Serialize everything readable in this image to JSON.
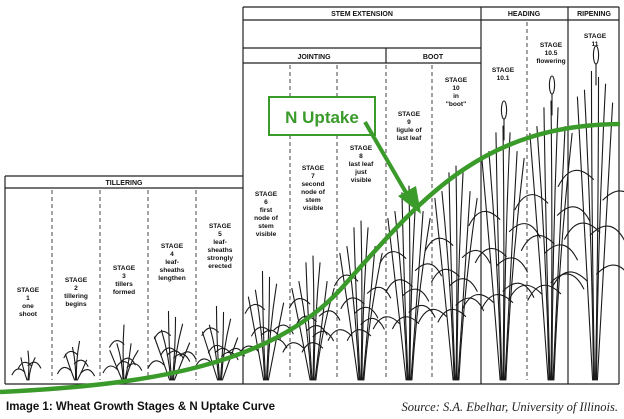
{
  "headers": {
    "tillering": "TILLERING",
    "stem_extension": "STEM EXTENSION",
    "jointing": "JOINTING",
    "boot": "BOOT",
    "heading": "HEADING",
    "ripening": "RIPENING"
  },
  "stages": [
    {
      "lines": [
        "STAGE",
        "1",
        "one",
        "shoot"
      ]
    },
    {
      "lines": [
        "STAGE",
        "2",
        "tillering",
        "begins"
      ]
    },
    {
      "lines": [
        "STAGE",
        "3",
        "tillers",
        "formed"
      ]
    },
    {
      "lines": [
        "STAGE",
        "4",
        "leaf-",
        "sheaths",
        "lengthen"
      ]
    },
    {
      "lines": [
        "STAGE",
        "5",
        "leaf-",
        "sheaths",
        "strongly",
        "erected"
      ]
    },
    {
      "lines": [
        "STAGE",
        "6",
        "first",
        "node of",
        "stem",
        "visible"
      ]
    },
    {
      "lines": [
        "STAGE",
        "7",
        "second",
        "node of",
        "stem",
        "visible"
      ]
    },
    {
      "lines": [
        "STAGE",
        "8",
        "last leaf",
        "just",
        "visible"
      ]
    },
    {
      "lines": [
        "STAGE",
        "9",
        "ligule of",
        "last leaf"
      ]
    },
    {
      "lines": [
        "STAGE",
        "10",
        "in",
        "\"boot\""
      ]
    },
    {
      "lines": [
        "STAGE",
        "10.1"
      ]
    },
    {
      "lines": [
        "STAGE",
        "10.5",
        "flowering"
      ]
    },
    {
      "lines": [
        "STAGE",
        "11"
      ]
    }
  ],
  "uptake_label": "N Uptake",
  "caption": "Image 1: Wheat Growth Stages & N Uptake Curve",
  "source": "Source: S.A. Ebelhar, University of Illinois.",
  "colors": {
    "curve": "#3a9a2a",
    "frame": "#222222"
  }
}
